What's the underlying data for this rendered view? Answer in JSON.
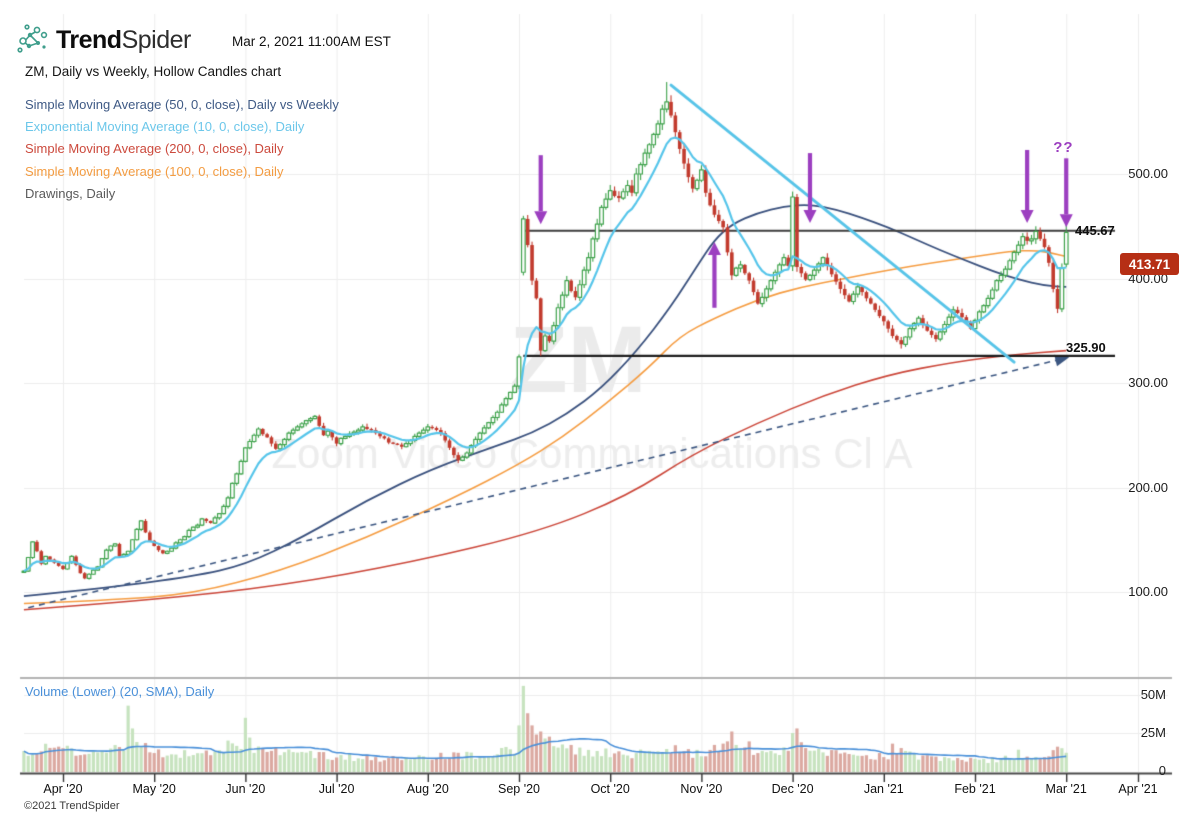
{
  "header": {
    "logo_bold": "Trend",
    "logo_light": "Spider",
    "timestamp": "Mar 2, 2021 11:00AM EST",
    "logo_color": "#3f9e8c"
  },
  "chart_title": "ZM, Daily vs Weekly, Hollow Candles chart",
  "legend": [
    {
      "label": "Simple Moving Average (50, 0, close), Daily vs Weekly",
      "color": "#3f5a85"
    },
    {
      "label": "Exponential Moving Average (10, 0, close), Daily",
      "color": "#6cc7ea"
    },
    {
      "label": "Simple Moving Average (200, 0, close), Daily",
      "color": "#cc4a3d"
    },
    {
      "label": "Simple Moving Average (100, 0, close), Daily",
      "color": "#f39c42"
    },
    {
      "label": "Drawings, Daily",
      "color": "#5a5a5a"
    }
  ],
  "volume_legend": {
    "label": "Volume (Lower) (20, SMA), Daily",
    "color": "#4a90d9"
  },
  "watermark": {
    "symbol": "ZM",
    "name": "Zoom Video Communications Cl A"
  },
  "axes": {
    "price_ticks": [
      {
        "label": "500.00",
        "value": 500
      },
      {
        "label": "400.00",
        "value": 400
      },
      {
        "label": "300.00",
        "value": 300
      },
      {
        "label": "200.00",
        "value": 200
      },
      {
        "label": "100.00",
        "value": 100
      }
    ],
    "volume_ticks": [
      {
        "label": "50M",
        "value": 50
      },
      {
        "label": "25M",
        "value": 25
      },
      {
        "label": "0",
        "value": 0
      }
    ],
    "x_ticks": [
      "Apr '20",
      "May '20",
      "Jun '20",
      "Jul '20",
      "Aug '20",
      "Sep '20",
      "Oct '20",
      "Nov '20",
      "Dec '20",
      "Jan '21",
      "Feb '21",
      "Mar '21",
      "Apr '21"
    ]
  },
  "last_price": {
    "label": "413.71",
    "value": 413.71,
    "badge_color": "#b62f15"
  },
  "annotations": {
    "color": "#9c3fc0",
    "question_label": "??",
    "resistance": {
      "label": "445.67",
      "price": 445.67,
      "start_day": 106,
      "color": "#3d3d3d"
    },
    "support": {
      "label": "325.90",
      "price": 325.9,
      "start_day": 106,
      "color": "#1c1c1c"
    },
    "arrows": [
      {
        "day": 110,
        "direction": "down",
        "tip_price": 452,
        "tail_price": 518
      },
      {
        "day": 150,
        "direction": "up",
        "tip_price": 435,
        "tail_price": 372
      },
      {
        "day": 172,
        "direction": "down",
        "tip_price": 453,
        "tail_price": 520
      },
      {
        "day": 222,
        "direction": "down",
        "tip_price": 453,
        "tail_price": 523
      },
      {
        "day": 231,
        "direction": "down",
        "tip_price": 449,
        "tail_price": 515
      }
    ]
  },
  "copyright": "©2021 TrendSpider",
  "chart_data": {
    "type": "candlestick",
    "symbol": "ZM",
    "timeframe": "Daily",
    "title": "ZM, Daily vs Weekly, Hollow Candles chart",
    "ylim": [
      60,
      610
    ],
    "volume_ylim_millions": [
      0,
      57
    ],
    "day_range": [
      -9,
      231
    ],
    "closes": [
      [
        -9,
        120
      ],
      [
        -8,
        133
      ],
      [
        -7,
        148
      ],
      [
        -6,
        139
      ],
      [
        -5,
        127
      ],
      [
        -4,
        134
      ],
      [
        -3,
        131
      ],
      [
        -2,
        128
      ],
      [
        -1,
        125
      ],
      [
        0,
        122
      ],
      [
        1,
        128
      ],
      [
        2,
        134
      ],
      [
        3,
        126
      ],
      [
        4,
        118
      ],
      [
        5,
        113
      ],
      [
        6,
        117
      ],
      [
        7,
        121
      ],
      [
        8,
        124
      ],
      [
        9,
        132
      ],
      [
        10,
        140
      ],
      [
        11,
        144
      ],
      [
        12,
        146
      ],
      [
        13,
        134
      ],
      [
        14,
        136
      ],
      [
        15,
        139
      ],
      [
        16,
        150
      ],
      [
        17,
        160
      ],
      [
        18,
        168
      ],
      [
        19,
        157
      ],
      [
        20,
        149
      ],
      [
        21,
        144
      ],
      [
        22,
        140
      ],
      [
        23,
        137
      ],
      [
        24,
        139
      ],
      [
        25,
        142
      ],
      [
        26,
        147
      ],
      [
        27,
        150
      ],
      [
        28,
        153
      ],
      [
        29,
        159
      ],
      [
        30,
        162
      ],
      [
        31,
        164
      ],
      [
        32,
        170
      ],
      [
        33,
        168
      ],
      [
        34,
        166
      ],
      [
        35,
        171
      ],
      [
        36,
        175
      ],
      [
        37,
        182
      ],
      [
        38,
        190
      ],
      [
        39,
        204
      ],
      [
        40,
        213
      ],
      [
        41,
        225
      ],
      [
        42,
        238
      ],
      [
        43,
        244
      ],
      [
        44,
        250
      ],
      [
        45,
        256
      ],
      [
        46,
        251
      ],
      [
        47,
        248
      ],
      [
        48,
        242
      ],
      [
        49,
        237
      ],
      [
        50,
        241
      ],
      [
        51,
        246
      ],
      [
        52,
        252
      ],
      [
        53,
        255
      ],
      [
        54,
        258
      ],
      [
        55,
        261
      ],
      [
        56,
        264
      ],
      [
        57,
        266
      ],
      [
        58,
        268
      ],
      [
        59,
        259
      ],
      [
        60,
        250
      ],
      [
        61,
        254
      ],
      [
        62,
        248
      ],
      [
        63,
        242
      ],
      [
        64,
        247
      ],
      [
        65,
        249
      ],
      [
        66,
        251
      ],
      [
        67,
        253
      ],
      [
        68,
        255
      ],
      [
        69,
        258
      ],
      [
        70,
        256
      ],
      [
        71,
        255
      ],
      [
        72,
        252
      ],
      [
        73,
        249
      ],
      [
        74,
        247
      ],
      [
        75,
        243
      ],
      [
        76,
        242
      ],
      [
        77,
        241
      ],
      [
        78,
        239
      ],
      [
        79,
        242
      ],
      [
        80,
        245
      ],
      [
        81,
        249
      ],
      [
        82,
        252
      ],
      [
        83,
        255
      ],
      [
        84,
        258
      ],
      [
        85,
        257
      ],
      [
        86,
        255
      ],
      [
        87,
        252
      ],
      [
        88,
        245
      ],
      [
        89,
        238
      ],
      [
        90,
        231
      ],
      [
        91,
        226
      ],
      [
        92,
        229
      ],
      [
        93,
        233
      ],
      [
        94,
        240
      ],
      [
        95,
        246
      ],
      [
        96,
        252
      ],
      [
        97,
        257
      ],
      [
        98,
        262
      ],
      [
        99,
        267
      ],
      [
        100,
        272
      ],
      [
        101,
        279
      ],
      [
        102,
        285
      ],
      [
        103,
        291
      ],
      [
        104,
        297
      ],
      [
        105,
        325
      ],
      [
        106,
        457
      ],
      [
        107,
        432
      ],
      [
        108,
        398
      ],
      [
        109,
        381
      ],
      [
        110,
        331
      ],
      [
        111,
        345
      ],
      [
        112,
        340
      ],
      [
        113,
        355
      ],
      [
        114,
        372
      ],
      [
        115,
        384
      ],
      [
        116,
        398
      ],
      [
        117,
        388
      ],
      [
        118,
        382
      ],
      [
        119,
        394
      ],
      [
        120,
        408
      ],
      [
        121,
        420
      ],
      [
        122,
        438
      ],
      [
        123,
        452
      ],
      [
        124,
        468
      ],
      [
        125,
        476
      ],
      [
        126,
        484
      ],
      [
        127,
        479
      ],
      [
        128,
        477
      ],
      [
        129,
        483
      ],
      [
        130,
        489
      ],
      [
        131,
        482
      ],
      [
        132,
        500
      ],
      [
        133,
        509
      ],
      [
        134,
        520
      ],
      [
        135,
        528
      ],
      [
        136,
        538
      ],
      [
        137,
        548
      ],
      [
        138,
        562
      ],
      [
        139,
        569
      ],
      [
        140,
        556
      ],
      [
        141,
        540
      ],
      [
        142,
        524
      ],
      [
        143,
        510
      ],
      [
        144,
        497
      ],
      [
        145,
        486
      ],
      [
        146,
        494
      ],
      [
        147,
        504
      ],
      [
        148,
        482
      ],
      [
        149,
        470
      ],
      [
        150,
        461
      ],
      [
        151,
        455
      ],
      [
        152,
        449
      ],
      [
        153,
        425
      ],
      [
        154,
        403
      ],
      [
        155,
        410
      ],
      [
        156,
        413
      ],
      [
        157,
        405
      ],
      [
        158,
        398
      ],
      [
        159,
        387
      ],
      [
        160,
        376
      ],
      [
        161,
        382
      ],
      [
        162,
        390
      ],
      [
        163,
        398
      ],
      [
        164,
        406
      ],
      [
        165,
        413
      ],
      [
        166,
        420
      ],
      [
        167,
        412
      ],
      [
        168,
        478
      ],
      [
        169,
        411
      ],
      [
        170,
        405
      ],
      [
        171,
        399
      ],
      [
        172,
        403
      ],
      [
        173,
        408
      ],
      [
        174,
        414
      ],
      [
        175,
        420
      ],
      [
        176,
        412
      ],
      [
        177,
        404
      ],
      [
        178,
        397
      ],
      [
        179,
        390
      ],
      [
        180,
        384
      ],
      [
        181,
        378
      ],
      [
        182,
        385
      ],
      [
        183,
        392
      ],
      [
        184,
        387
      ],
      [
        185,
        381
      ],
      [
        186,
        376
      ],
      [
        187,
        370
      ],
      [
        188,
        364
      ],
      [
        189,
        359
      ],
      [
        190,
        352
      ],
      [
        191,
        345
      ],
      [
        192,
        341
      ],
      [
        193,
        337
      ],
      [
        194,
        344
      ],
      [
        195,
        352
      ],
      [
        196,
        357
      ],
      [
        197,
        362
      ],
      [
        198,
        356
      ],
      [
        199,
        350
      ],
      [
        200,
        346
      ],
      [
        201,
        342
      ],
      [
        202,
        349
      ],
      [
        203,
        356
      ],
      [
        204,
        363
      ],
      [
        205,
        370
      ],
      [
        206,
        367
      ],
      [
        207,
        363
      ],
      [
        208,
        358
      ],
      [
        209,
        352
      ],
      [
        210,
        360
      ],
      [
        211,
        368
      ],
      [
        212,
        374
      ],
      [
        213,
        381
      ],
      [
        214,
        389
      ],
      [
        215,
        398
      ],
      [
        216,
        403
      ],
      [
        217,
        409
      ],
      [
        218,
        417
      ],
      [
        219,
        425
      ],
      [
        220,
        432
      ],
      [
        221,
        440
      ],
      [
        222,
        436
      ],
      [
        223,
        438
      ],
      [
        224,
        445
      ],
      [
        225,
        438
      ],
      [
        226,
        430
      ],
      [
        227,
        415
      ],
      [
        228,
        390
      ],
      [
        229,
        371
      ],
      [
        230,
        409.66
      ],
      [
        231,
        413.71
      ]
    ],
    "open_overrides": {
      "106": 406,
      "231": 444
    },
    "high_overrides": {
      "106": 460,
      "139": 588,
      "231": 452
    },
    "low_overrides": {
      "110": 326
    },
    "volume_anchors_millions": [
      [
        -9,
        13
      ],
      [
        0,
        15
      ],
      [
        5,
        11
      ],
      [
        10,
        14
      ],
      [
        17,
        20
      ],
      [
        20,
        13
      ],
      [
        26,
        12
      ],
      [
        30,
        10
      ],
      [
        36,
        13
      ],
      [
        39,
        18
      ],
      [
        45,
        16
      ],
      [
        50,
        13
      ],
      [
        55,
        11
      ],
      [
        60,
        10
      ],
      [
        65,
        9
      ],
      [
        70,
        9
      ],
      [
        75,
        8
      ],
      [
        80,
        8
      ],
      [
        85,
        9
      ],
      [
        90,
        10
      ],
      [
        95,
        10
      ],
      [
        100,
        12
      ],
      [
        104,
        14
      ],
      [
        112,
        18
      ],
      [
        115,
        15
      ],
      [
        120,
        13
      ],
      [
        125,
        12
      ],
      [
        130,
        11
      ],
      [
        134,
        13
      ],
      [
        139,
        16
      ],
      [
        142,
        14
      ],
      [
        145,
        12
      ],
      [
        148,
        13
      ],
      [
        152,
        15
      ],
      [
        156,
        18
      ],
      [
        160,
        13
      ],
      [
        164,
        12
      ],
      [
        170,
        20
      ],
      [
        173,
        13
      ],
      [
        177,
        11
      ],
      [
        181,
        10
      ],
      [
        185,
        9
      ],
      [
        189,
        10
      ],
      [
        193,
        12
      ],
      [
        197,
        9
      ],
      [
        201,
        8
      ],
      [
        205,
        7
      ],
      [
        209,
        7
      ],
      [
        213,
        7
      ],
      [
        217,
        8
      ],
      [
        222,
        10
      ],
      [
        224,
        9
      ],
      [
        226,
        10
      ],
      [
        228,
        13
      ]
    ],
    "volume_spikes_millions": {
      "15": 43,
      "16": 28,
      "42": 35,
      "43": 22,
      "105": 30,
      "106": 56,
      "107": 38,
      "108": 30,
      "109": 24,
      "110": 26,
      "154": 26,
      "168": 25,
      "169": 28,
      "191": 18,
      "220": 14,
      "229": 16,
      "230": 15,
      "231": 12
    },
    "indicators": {
      "ema_period": 10,
      "volume_sma_period": 20
    },
    "sma50_weekly": [
      [
        -9,
        96
      ],
      [
        10,
        104
      ],
      [
        30,
        115
      ],
      [
        42,
        126
      ],
      [
        55,
        152
      ],
      [
        70,
        188
      ],
      [
        85,
        218
      ],
      [
        100,
        240
      ],
      [
        108,
        252
      ],
      [
        116,
        270
      ],
      [
        124,
        295
      ],
      [
        132,
        330
      ],
      [
        140,
        373
      ],
      [
        146,
        412
      ],
      [
        150,
        437
      ],
      [
        154,
        452
      ],
      [
        160,
        463
      ],
      [
        166,
        469
      ],
      [
        172,
        471
      ],
      [
        178,
        466
      ],
      [
        184,
        458
      ],
      [
        190,
        449
      ],
      [
        196,
        438
      ],
      [
        202,
        427
      ],
      [
        208,
        417
      ],
      [
        214,
        407
      ],
      [
        220,
        399
      ],
      [
        226,
        393
      ],
      [
        231,
        392
      ]
    ],
    "sma100": [
      [
        -9,
        89
      ],
      [
        10,
        92
      ],
      [
        30,
        98
      ],
      [
        50,
        120
      ],
      [
        70,
        152
      ],
      [
        90,
        190
      ],
      [
        105,
        222
      ],
      [
        115,
        248
      ],
      [
        125,
        280
      ],
      [
        135,
        315
      ],
      [
        142,
        345
      ],
      [
        150,
        362
      ],
      [
        160,
        380
      ],
      [
        170,
        392
      ],
      [
        180,
        400
      ],
      [
        190,
        408
      ],
      [
        200,
        415
      ],
      [
        210,
        421
      ],
      [
        218,
        426
      ],
      [
        224,
        427
      ],
      [
        228,
        424
      ],
      [
        231,
        421
      ]
    ],
    "sma200": [
      [
        -9,
        83
      ],
      [
        20,
        92
      ],
      [
        50,
        106
      ],
      [
        80,
        128
      ],
      [
        110,
        158
      ],
      [
        130,
        192
      ],
      [
        145,
        232
      ],
      [
        160,
        262
      ],
      [
        175,
        288
      ],
      [
        190,
        308
      ],
      [
        205,
        320
      ],
      [
        218,
        327
      ],
      [
        231,
        331
      ]
    ],
    "trendline_cyan": {
      "from": {
        "day": 140,
        "price": 585
      },
      "to": {
        "day": 219,
        "price": 320
      },
      "color": "#58c4e8"
    },
    "trendline_dashed": {
      "from": {
        "day": -8,
        "price": 85
      },
      "to": {
        "day": 229,
        "price": 322
      },
      "color": "#3b5681"
    },
    "colors": {
      "up": "#3ea24b",
      "down": "#c23b2e",
      "vol_up": "#c7e3bf",
      "vol_down": "#dba9a1",
      "ema": "#56c5ea",
      "sma50": "#39507d",
      "sma100": "#f59c41",
      "sma200": "#cb4639",
      "vol_sma": "#4a90d9",
      "grid": "#ededed"
    }
  }
}
